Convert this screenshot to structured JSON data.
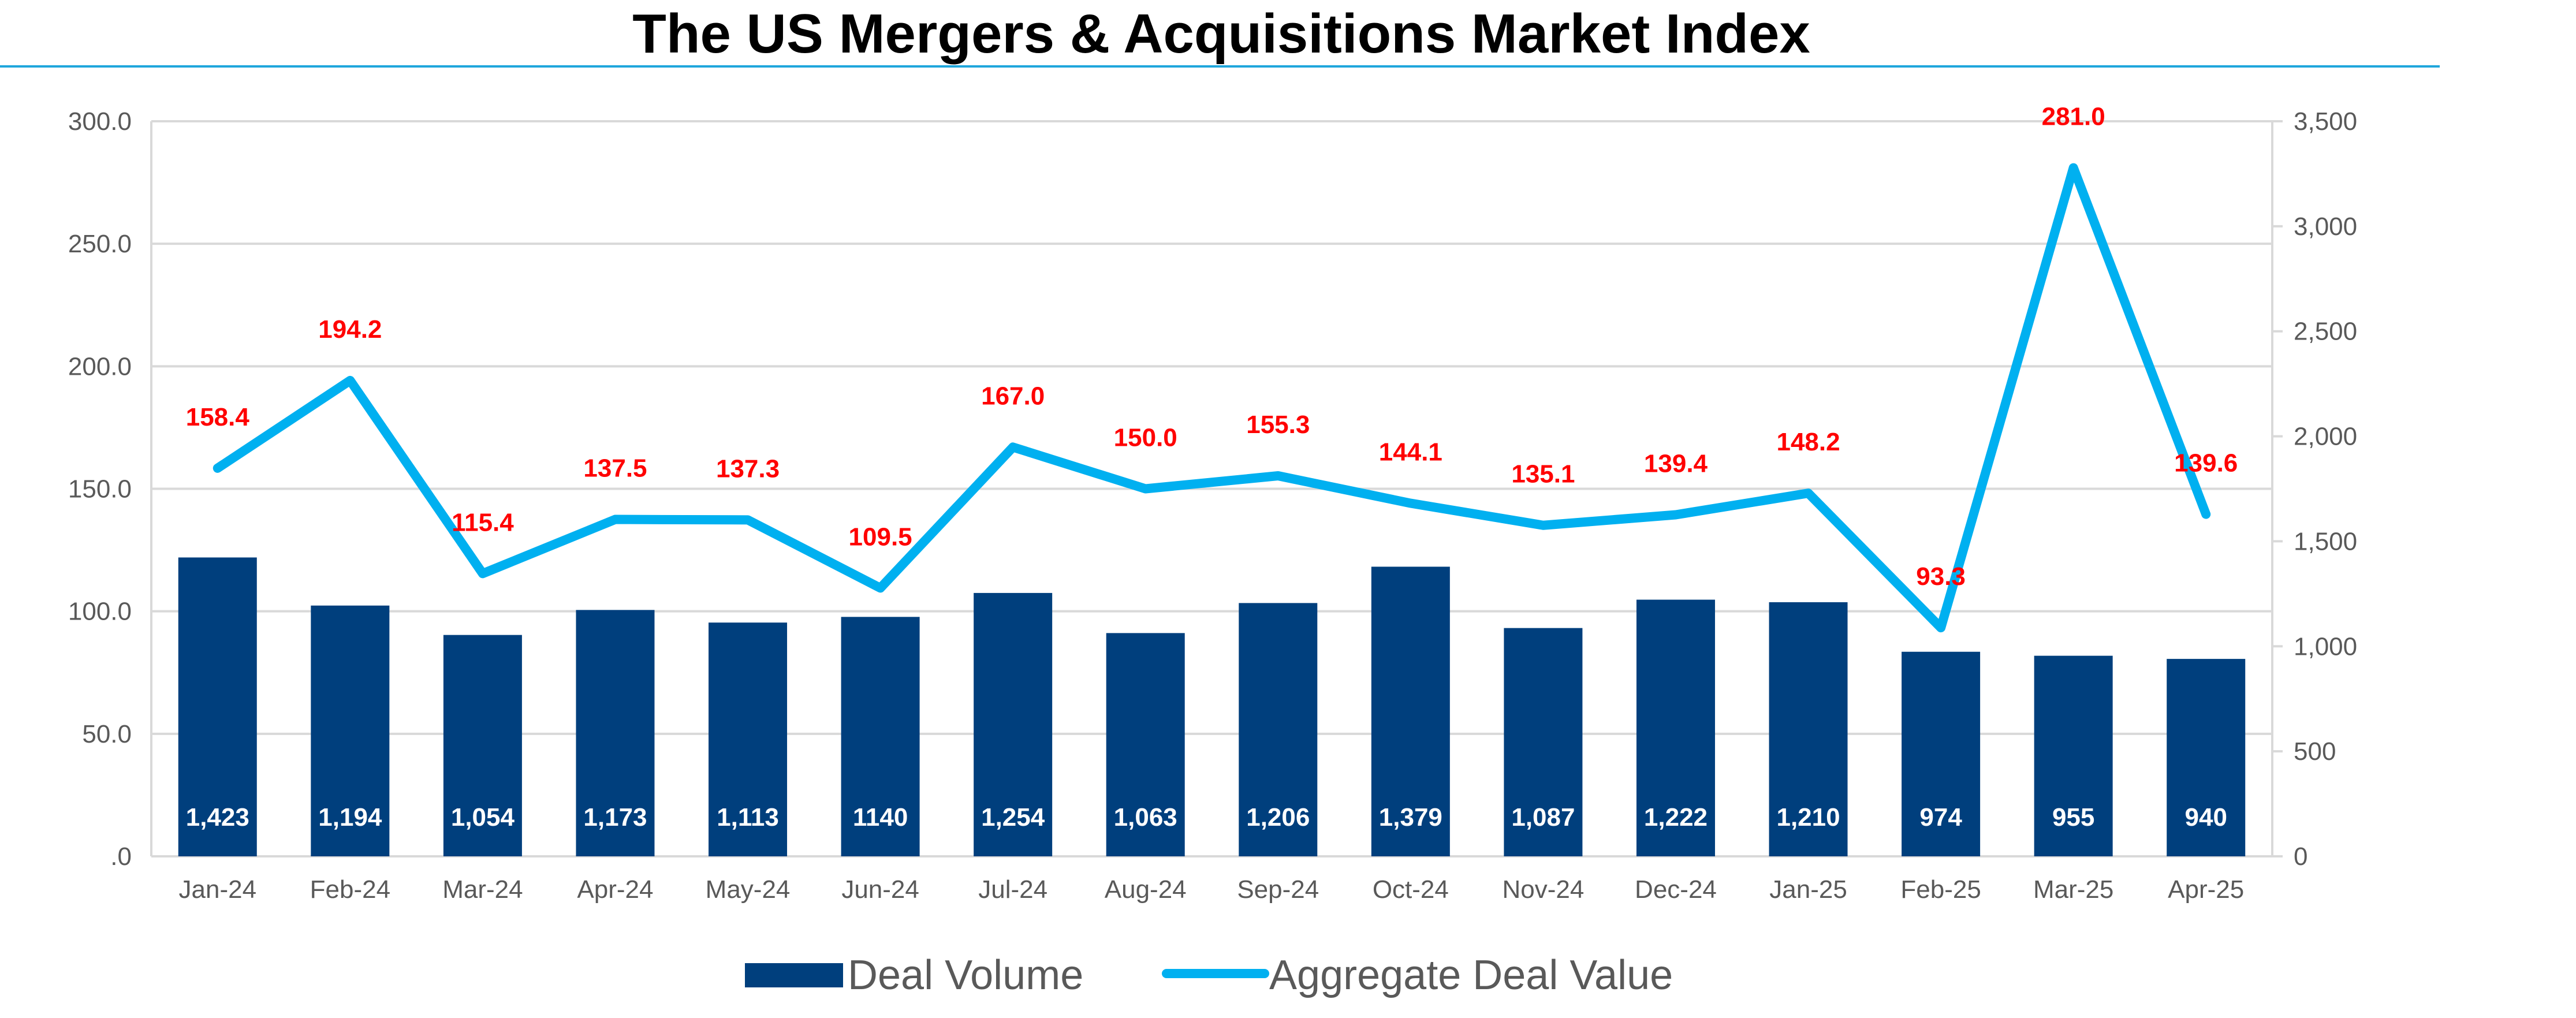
{
  "chart_data": {
    "type": "bar+line",
    "title": "The US Mergers & Acquisitions Market Index",
    "categories": [
      "Jan-24",
      "Feb-24",
      "Mar-24",
      "Apr-24",
      "May-24",
      "Jun-24",
      "Jul-24",
      "Aug-24",
      "Sep-24",
      "Oct-24",
      "Nov-24",
      "Dec-24",
      "Jan-25",
      "Feb-25",
      "Mar-25",
      "Apr-25"
    ],
    "series": [
      {
        "name": "Deal Volume",
        "type": "bar",
        "axis": "right",
        "color": "#003f7d",
        "values": [
          1423,
          1194,
          1054,
          1173,
          1113,
          1140,
          1254,
          1063,
          1206,
          1379,
          1087,
          1222,
          1210,
          974,
          955,
          940
        ],
        "labels": [
          "1,423",
          "1,194",
          "1,054",
          "1,173",
          "1,113",
          "1140",
          "1,254",
          "1,063",
          "1,206",
          "1,379",
          "1,087",
          "1,222",
          "1,210",
          "974",
          "955",
          "940"
        ]
      },
      {
        "name": "Aggregate Deal Value",
        "type": "line",
        "axis": "left",
        "color": "#00b0f0",
        "values": [
          158.4,
          194.2,
          115.4,
          137.5,
          137.3,
          109.5,
          167.0,
          150.0,
          155.3,
          144.1,
          135.1,
          139.4,
          148.2,
          93.3,
          281.0,
          139.6
        ],
        "labels": [
          "158.4",
          "194.2",
          "115.4",
          "137.5",
          "137.3",
          "109.5",
          "167.0",
          "150.0",
          "155.3",
          "144.1",
          "135.1",
          "139.4",
          "148.2",
          "93.3",
          "281.0",
          "139.6"
        ]
      }
    ],
    "y_left": {
      "lim": [
        0,
        300
      ],
      "ticks": [
        ".0",
        "50.0",
        "100.0",
        "150.0",
        "200.0",
        "250.0",
        "300.0"
      ]
    },
    "y_right": {
      "lim": [
        0,
        3500
      ],
      "ticks": [
        "0",
        "500",
        "1,000",
        "1,500",
        "2,000",
        "2,500",
        "3,000",
        "3,500"
      ]
    },
    "grid": true,
    "legend_position": "bottom",
    "label_color": "#ff0000"
  }
}
